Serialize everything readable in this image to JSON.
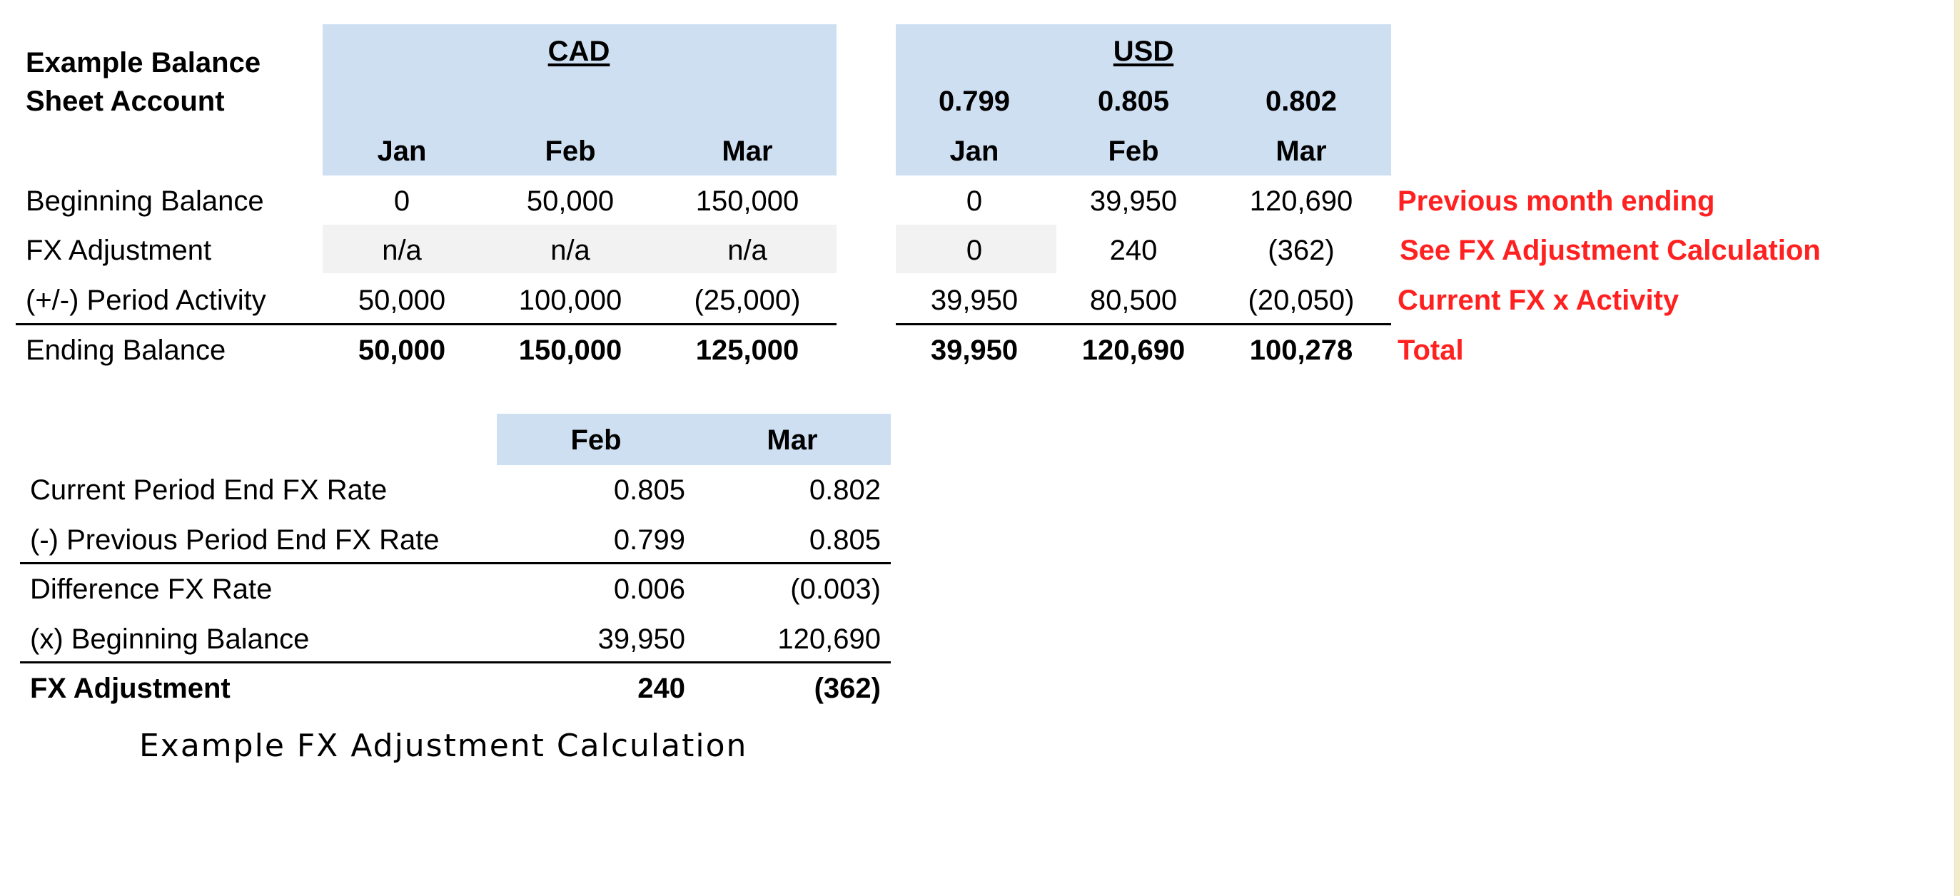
{
  "top_table": {
    "title_line1": "Example Balance",
    "title_line2": "Sheet Account",
    "cad": {
      "header": "CAD",
      "months": [
        "Jan",
        "Feb",
        "Mar"
      ]
    },
    "usd": {
      "header": "USD",
      "rates": [
        "0.799",
        "0.805",
        "0.802"
      ],
      "months": [
        "Jan",
        "Feb",
        "Mar"
      ]
    },
    "rows": [
      {
        "label": "Beginning Balance",
        "cad": [
          "0",
          "50,000",
          "150,000"
        ],
        "usd": [
          "0",
          "39,950",
          "120,690"
        ],
        "note": "Previous month ending"
      },
      {
        "label": "FX Adjustment",
        "cad": [
          "n/a",
          "n/a",
          "n/a"
        ],
        "usd": [
          "0",
          "240",
          "(362)"
        ],
        "note": "See FX Adjustment Calculation"
      },
      {
        "label": "(+/-) Period Activity",
        "cad": [
          "50,000",
          "100,000",
          "(25,000)"
        ],
        "usd": [
          "39,950",
          "80,500",
          "(20,050)"
        ],
        "note": "Current FX x Activity"
      },
      {
        "label": "Ending Balance",
        "cad": [
          "50,000",
          "150,000",
          "125,000"
        ],
        "usd": [
          "39,950",
          "120,690",
          "100,278"
        ],
        "note": "Total"
      }
    ]
  },
  "bottom_table": {
    "months": [
      "Feb",
      "Mar"
    ],
    "rows": [
      {
        "label": "Current Period End FX Rate",
        "values": [
          "0.805",
          "0.802"
        ]
      },
      {
        "label": "(-) Previous Period End FX Rate",
        "values": [
          "0.799",
          "0.805"
        ]
      },
      {
        "label": "Difference FX Rate",
        "values": [
          "0.006",
          "(0.003)"
        ]
      },
      {
        "label": "(x) Beginning Balance",
        "values": [
          "39,950",
          "120,690"
        ]
      },
      {
        "label": "FX Adjustment",
        "values": [
          "240",
          "(362)"
        ]
      }
    ]
  },
  "caption": "Example FX Adjustment Calculation"
}
